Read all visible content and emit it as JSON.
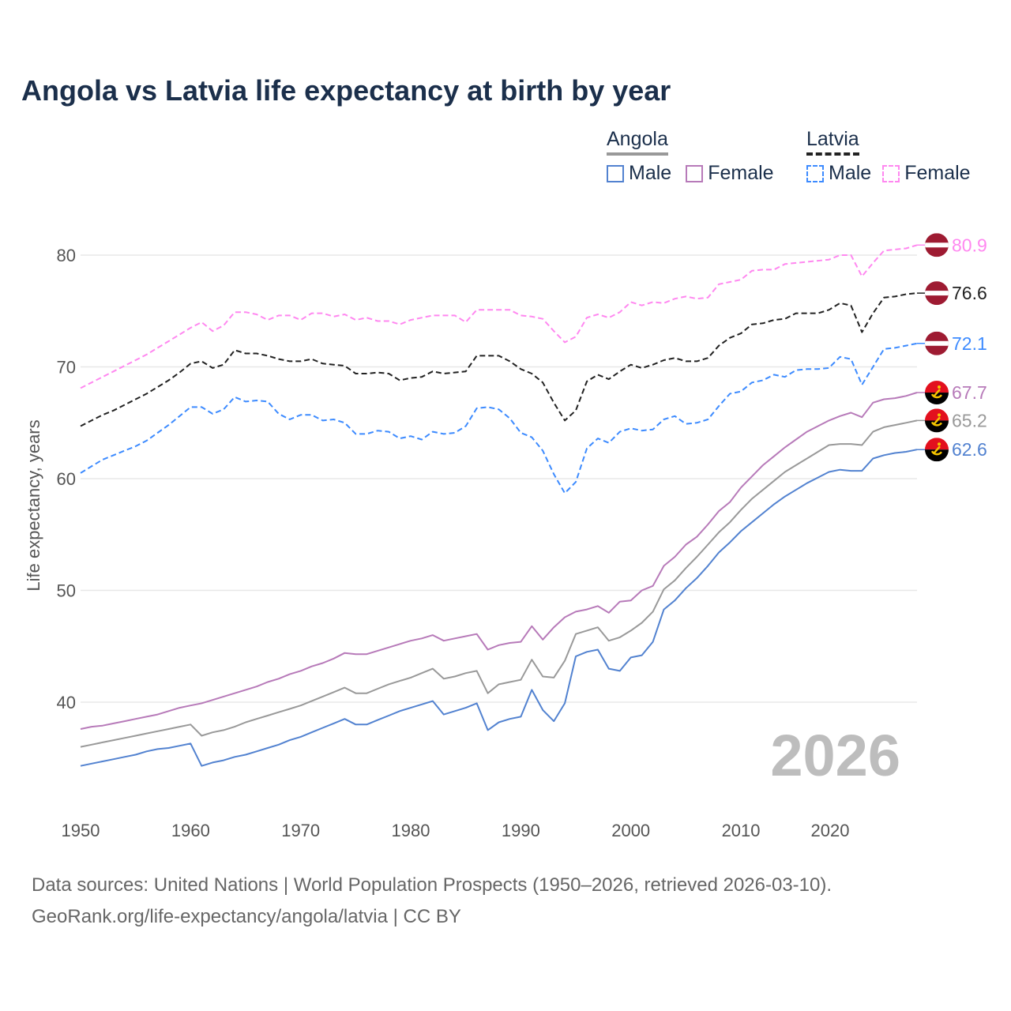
{
  "chart_data": {
    "type": "line",
    "title": "Angola vs Latvia life expectancy at birth by year",
    "xlabel": "",
    "ylabel": "Life expectancy, years",
    "xlim": [
      1950,
      2026
    ],
    "ylim": [
      33,
      84
    ],
    "x_ticks": [
      "1950",
      "1960",
      "1970",
      "1980",
      "1990",
      "2000",
      "2010",
      "2020"
    ],
    "y_ticks": [
      "40",
      "50",
      "60",
      "70",
      "80"
    ],
    "grid": true,
    "legend_position": "top-right",
    "year_watermark": "2026",
    "legend": {
      "angola": {
        "label": "Angola",
        "color": "#999999",
        "male": "Male",
        "female": "Female"
      },
      "latvia": {
        "label": "Latvia",
        "color": "#222222",
        "male": "Male",
        "female": "Female"
      }
    },
    "start_year": 1950,
    "series": [
      {
        "name": "Latvia Female",
        "country": "latvia",
        "color": "#ff88f0",
        "dashed": true,
        "end_label": "80.9",
        "values": [
          68.1,
          68.6,
          69.1,
          69.6,
          70.1,
          70.6,
          71.1,
          71.7,
          72.3,
          72.9,
          73.5,
          74.0,
          73.2,
          73.7,
          74.9,
          74.9,
          74.7,
          74.2,
          74.6,
          74.6,
          74.2,
          74.8,
          74.8,
          74.5,
          74.7,
          74.2,
          74.4,
          74.1,
          74.1,
          73.8,
          74.2,
          74.4,
          74.6,
          74.6,
          74.6,
          74.0,
          75.1,
          75.1,
          75.1,
          75.1,
          74.6,
          74.5,
          74.3,
          73.2,
          72.2,
          72.7,
          74.4,
          74.7,
          74.4,
          74.9,
          75.8,
          75.5,
          75.8,
          75.7,
          76.1,
          76.3,
          76.1,
          76.2,
          77.4,
          77.6,
          77.8,
          78.6,
          78.7,
          78.7,
          79.2,
          79.3,
          79.4,
          79.5,
          79.6,
          80.0,
          80.0,
          78.1,
          79.3,
          80.4,
          80.5,
          80.6,
          80.9
        ]
      },
      {
        "name": "Latvia Total",
        "country": "latvia",
        "color": "#222222",
        "dashed": true,
        "end_label": "76.6",
        "values": [
          64.7,
          65.2,
          65.7,
          66.1,
          66.6,
          67.1,
          67.6,
          68.2,
          68.8,
          69.5,
          70.3,
          70.5,
          69.9,
          70.2,
          71.5,
          71.2,
          71.2,
          71.0,
          70.7,
          70.5,
          70.5,
          70.7,
          70.3,
          70.2,
          70.1,
          69.4,
          69.4,
          69.5,
          69.4,
          68.8,
          69.0,
          69.1,
          69.6,
          69.4,
          69.5,
          69.6,
          71.0,
          71.0,
          71.0,
          70.5,
          69.8,
          69.4,
          68.6,
          66.8,
          65.2,
          66.1,
          68.7,
          69.3,
          68.9,
          69.6,
          70.2,
          69.9,
          70.2,
          70.6,
          70.8,
          70.5,
          70.5,
          70.8,
          71.9,
          72.6,
          73.0,
          73.8,
          73.9,
          74.2,
          74.3,
          74.8,
          74.8,
          74.8,
          75.1,
          75.7,
          75.5,
          73.1,
          74.8,
          76.2,
          76.3,
          76.5,
          76.6
        ]
      },
      {
        "name": "Latvia Male",
        "country": "latvia",
        "color": "#3d8bff",
        "dashed": true,
        "end_label": "72.1",
        "values": [
          60.5,
          61.1,
          61.7,
          62.1,
          62.5,
          62.9,
          63.4,
          64.1,
          64.8,
          65.6,
          66.4,
          66.4,
          65.8,
          66.2,
          67.3,
          66.9,
          67.0,
          66.9,
          65.8,
          65.3,
          65.7,
          65.7,
          65.2,
          65.3,
          65.0,
          64.0,
          64.0,
          64.3,
          64.2,
          63.6,
          63.8,
          63.5,
          64.2,
          64.0,
          64.1,
          64.7,
          66.3,
          66.4,
          66.2,
          65.4,
          64.1,
          63.7,
          62.5,
          60.4,
          58.7,
          59.7,
          62.7,
          63.6,
          63.2,
          64.2,
          64.5,
          64.3,
          64.4,
          65.3,
          65.6,
          64.9,
          65.0,
          65.3,
          66.5,
          67.6,
          67.8,
          68.6,
          68.8,
          69.3,
          69.1,
          69.7,
          69.8,
          69.8,
          69.9,
          70.9,
          70.7,
          68.4,
          70.0,
          71.6,
          71.7,
          71.9,
          72.1
        ]
      },
      {
        "name": "Angola Female",
        "country": "angola",
        "color": "#b77ab9",
        "dashed": false,
        "end_label": "67.7",
        "values": [
          37.6,
          37.8,
          37.9,
          38.1,
          38.3,
          38.5,
          38.7,
          38.9,
          39.2,
          39.5,
          39.7,
          39.9,
          40.2,
          40.5,
          40.8,
          41.1,
          41.4,
          41.8,
          42.1,
          42.5,
          42.8,
          43.2,
          43.5,
          43.9,
          44.4,
          44.3,
          44.3,
          44.6,
          44.9,
          45.2,
          45.5,
          45.7,
          46.0,
          45.5,
          45.7,
          45.9,
          46.1,
          44.7,
          45.1,
          45.3,
          45.4,
          46.8,
          45.6,
          46.7,
          47.6,
          48.1,
          48.3,
          48.6,
          48.0,
          49.0,
          49.1,
          50.0,
          50.4,
          52.2,
          53.0,
          54.1,
          54.8,
          55.9,
          57.1,
          57.9,
          59.2,
          60.2,
          61.2,
          62.0,
          62.8,
          63.5,
          64.2,
          64.7,
          65.2,
          65.6,
          65.9,
          65.5,
          66.8,
          67.1,
          67.2,
          67.4,
          67.7
        ]
      },
      {
        "name": "Angola Total",
        "country": "angola",
        "color": "#999999",
        "dashed": false,
        "end_label": "65.2",
        "values": [
          36.0,
          36.2,
          36.4,
          36.6,
          36.8,
          37.0,
          37.2,
          37.4,
          37.6,
          37.8,
          38.0,
          37.0,
          37.3,
          37.5,
          37.8,
          38.2,
          38.5,
          38.8,
          39.1,
          39.4,
          39.7,
          40.1,
          40.5,
          40.9,
          41.3,
          40.8,
          40.8,
          41.2,
          41.6,
          41.9,
          42.2,
          42.6,
          43.0,
          42.1,
          42.3,
          42.6,
          42.8,
          40.8,
          41.6,
          41.8,
          42.0,
          43.8,
          42.3,
          42.2,
          43.7,
          46.1,
          46.4,
          46.7,
          45.5,
          45.8,
          46.4,
          47.1,
          48.1,
          50.1,
          50.9,
          52.0,
          53.0,
          54.1,
          55.2,
          56.1,
          57.2,
          58.2,
          59.0,
          59.8,
          60.6,
          61.2,
          61.8,
          62.4,
          63.0,
          63.1,
          63.1,
          63.0,
          64.2,
          64.6,
          64.8,
          65.0,
          65.2
        ]
      },
      {
        "name": "Angola Male",
        "country": "angola",
        "color": "#5282d0",
        "dashed": false,
        "end_label": "62.6",
        "values": [
          34.3,
          34.5,
          34.7,
          34.9,
          35.1,
          35.3,
          35.6,
          35.8,
          35.9,
          36.1,
          36.3,
          34.3,
          34.6,
          34.8,
          35.1,
          35.3,
          35.6,
          35.9,
          36.2,
          36.6,
          36.9,
          37.3,
          37.7,
          38.1,
          38.5,
          38.0,
          38.0,
          38.4,
          38.8,
          39.2,
          39.5,
          39.8,
          40.1,
          38.9,
          39.2,
          39.5,
          39.9,
          37.5,
          38.2,
          38.5,
          38.7,
          41.1,
          39.3,
          38.3,
          39.9,
          44.1,
          44.5,
          44.7,
          43.0,
          42.8,
          44.0,
          44.2,
          45.4,
          48.3,
          49.1,
          50.2,
          51.1,
          52.2,
          53.4,
          54.3,
          55.3,
          56.1,
          56.9,
          57.7,
          58.4,
          59.0,
          59.6,
          60.1,
          60.6,
          60.8,
          60.7,
          60.7,
          61.8,
          62.1,
          62.3,
          62.4,
          62.6
        ]
      }
    ]
  },
  "footer": {
    "line1": "Data sources: United Nations | World Population Prospects (1950–2026, retrieved 2026-03-10).",
    "line2": "GeoRank.org/life-expectancy/angola/latvia | CC BY"
  }
}
